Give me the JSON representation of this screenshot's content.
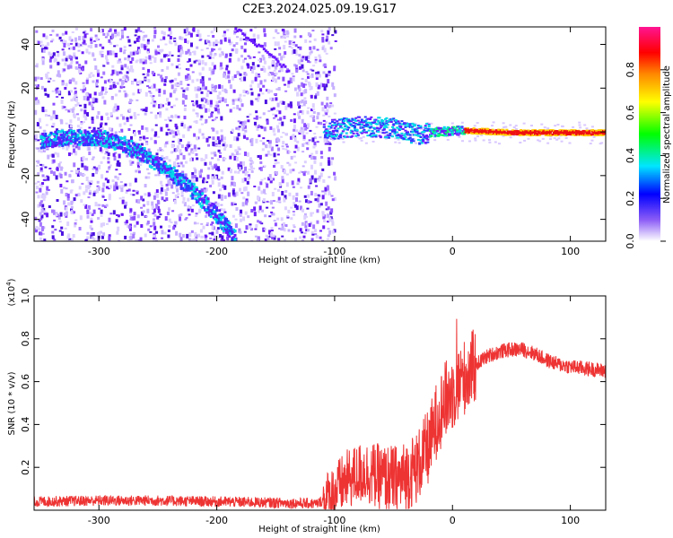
{
  "title": "C2E3.2024.025.09.19.G17",
  "chart_data": [
    {
      "type": "heatmap",
      "xlabel": "Height of straight line (km)",
      "ylabel": "Frequency (Hz)",
      "xlim": [
        -355,
        130
      ],
      "ylim": [
        -50,
        48
      ],
      "xticks": [
        -300,
        -200,
        -100,
        0,
        100
      ],
      "yticks": [
        -40,
        -20,
        0,
        20,
        40
      ],
      "colorbar": {
        "label": "Normalized spectral amplitude",
        "range": [
          0,
          1
        ],
        "ticks": [
          "0.0",
          "0.2",
          "0.4",
          "0.6",
          "0.8"
        ],
        "colors": [
          "#ffffff",
          "#8b5cf6",
          "#0000ff",
          "#00e5ff",
          "#00ff00",
          "#ffff00",
          "#ff8800",
          "#ff0000",
          "#ff1493"
        ]
      },
      "ridge": {
        "name": "descending trace",
        "x": [
          -350,
          -330,
          -300,
          -280,
          -260,
          -240,
          -220,
          -200,
          -185
        ],
        "y": [
          -4,
          -2,
          -2,
          -5,
          -11,
          -18,
          -27,
          -38,
          -48
        ]
      },
      "band": {
        "name": "near-zero trace",
        "x": [
          -110,
          -80,
          -50,
          -30,
          -20,
          0,
          10,
          50,
          100,
          130
        ],
        "y": [
          1,
          3,
          2,
          -1,
          0,
          1,
          1,
          0,
          0,
          0
        ]
      },
      "faint_line": {
        "x": [
          -185,
          -160,
          -140
        ],
        "y": [
          48,
          38,
          28
        ]
      }
    },
    {
      "type": "line",
      "xlabel": "Height of straight line (km)",
      "ylabel": "SNR (10 * v/v)",
      "scale_label": "(x10",
      "scale_exp": "4",
      "scale_close": ")",
      "xlim": [
        -355,
        130
      ],
      "ylim": [
        0,
        1.0
      ],
      "xticks": [
        -300,
        -200,
        -100,
        0,
        100
      ],
      "yticks": [
        "0.2",
        "0.4",
        "0.6",
        "0.8",
        "1.0"
      ],
      "line_color": "#ee3333",
      "series": [
        {
          "x": [
            -355,
            -300,
            -250,
            -200,
            -150,
            -115,
            -105,
            -90,
            -75,
            -60,
            -45,
            -30,
            -20,
            -12,
            -5,
            0,
            10,
            20,
            30,
            40,
            50,
            60,
            70,
            80,
            90,
            100,
            115,
            130
          ],
          "y": [
            0.04,
            0.045,
            0.045,
            0.04,
            0.035,
            0.03,
            0.06,
            0.14,
            0.18,
            0.15,
            0.14,
            0.2,
            0.3,
            0.45,
            0.52,
            0.55,
            0.62,
            0.68,
            0.72,
            0.74,
            0.75,
            0.75,
            0.73,
            0.7,
            0.68,
            0.67,
            0.66,
            0.65
          ]
        }
      ]
    }
  ]
}
